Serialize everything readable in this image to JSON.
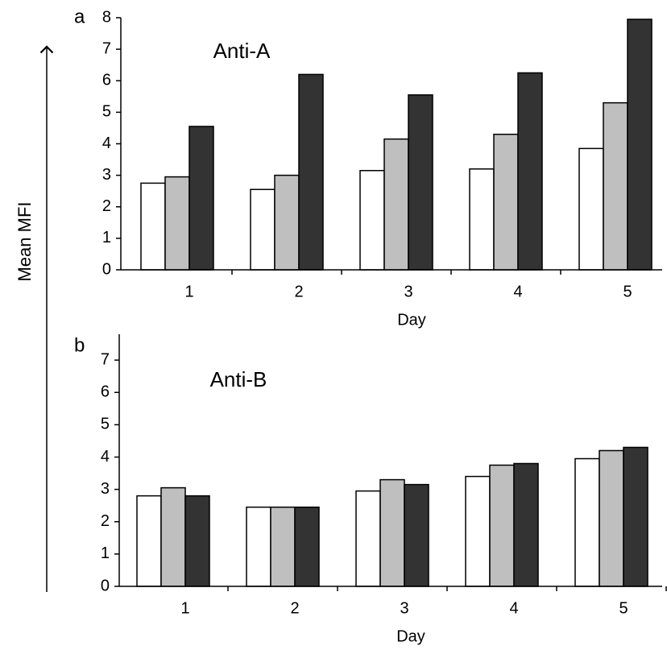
{
  "ylabel": "Mean MFI",
  "chart_data": [
    {
      "type": "bar",
      "panel_label": "a",
      "title": "Anti-A",
      "xlabel": "Day",
      "categories": [
        "1",
        "2",
        "3",
        "4",
        "5"
      ],
      "series": [
        {
          "color": "#ffffff",
          "values": [
            2.75,
            2.55,
            3.15,
            3.2,
            3.85
          ]
        },
        {
          "color": "#bfbfbf",
          "values": [
            2.95,
            3.0,
            4.15,
            4.3,
            5.3
          ]
        },
        {
          "color": "#333333",
          "values": [
            4.55,
            6.2,
            5.55,
            6.25,
            7.95
          ]
        }
      ],
      "ylim": [
        0,
        8
      ],
      "yticks": [
        0,
        1,
        2,
        3,
        4,
        5,
        6,
        7,
        8
      ]
    },
    {
      "type": "bar",
      "panel_label": "b",
      "title": "Anti-B",
      "xlabel": "Day",
      "categories": [
        "1",
        "2",
        "3",
        "4",
        "5"
      ],
      "series": [
        {
          "color": "#ffffff",
          "values": [
            2.8,
            2.45,
            2.95,
            3.4,
            3.95
          ]
        },
        {
          "color": "#bfbfbf",
          "values": [
            3.05,
            2.45,
            3.3,
            3.75,
            4.2
          ]
        },
        {
          "color": "#333333",
          "values": [
            2.8,
            2.45,
            3.15,
            3.8,
            4.3
          ]
        }
      ],
      "ylim": [
        0,
        7.8
      ],
      "yticks": [
        0,
        1,
        2,
        3,
        4,
        5,
        6,
        7
      ]
    }
  ]
}
